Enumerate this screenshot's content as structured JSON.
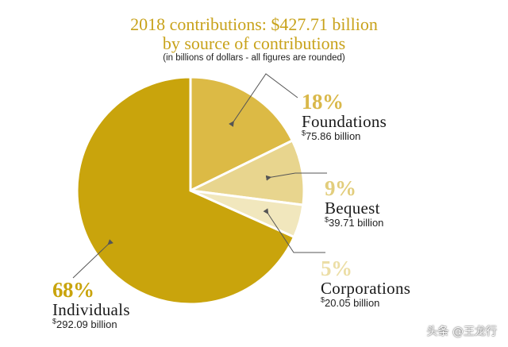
{
  "title_line1": "2018 contributions: $427.71 billion",
  "title_line2": "by source of contributions",
  "subtitle": "(in billions of dollars - all figures are rounded)",
  "watermark": "头条 @王龙行",
  "chart_data": {
    "type": "pie",
    "total": 427.71,
    "slices": [
      {
        "label": "Foundations",
        "percent": "18%",
        "amount_prefix": "$",
        "amount_text": "75.86 billion",
        "value": 75.86,
        "color": "#dcba45",
        "label_color": "#d9b84a"
      },
      {
        "label": "Bequest",
        "percent": "9%",
        "amount_prefix": "$",
        "amount_text": "39.71 billion",
        "value": 39.71,
        "color": "#e8d58e",
        "label_color": "#e2cd7c"
      },
      {
        "label": "Corporations",
        "percent": "5%",
        "amount_prefix": "$",
        "amount_text": "20.05 billion",
        "value": 20.05,
        "color": "#f1e7bd",
        "label_color": "#ecdea6"
      },
      {
        "label": "Individuals",
        "percent": "68%",
        "amount_prefix": "$",
        "amount_text": "292.09 billion",
        "value": 292.09,
        "color": "#c9a40c",
        "label_color": "#c9a40c"
      }
    ]
  }
}
